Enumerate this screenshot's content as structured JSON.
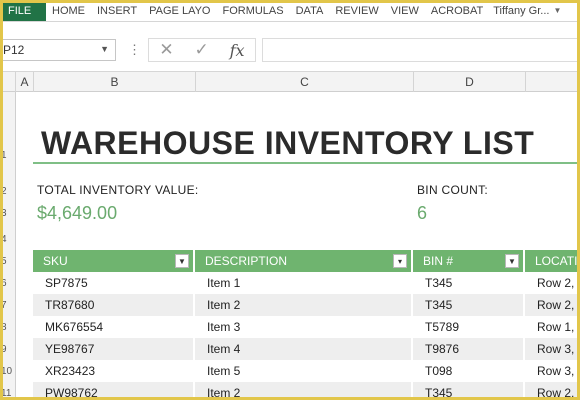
{
  "ribbon": {
    "tabs": [
      "FILE",
      "HOME",
      "INSERT",
      "PAGE LAYO",
      "FORMULAS",
      "DATA",
      "REVIEW",
      "VIEW",
      "ACROBAT"
    ],
    "user": "Tiffany Gr..."
  },
  "formula_bar": {
    "name_box": "P12",
    "cancel_icon": "close-icon",
    "enter_icon": "check-icon",
    "fx_label": "fx",
    "formula_value": ""
  },
  "columns": [
    "A",
    "B",
    "C",
    "D"
  ],
  "rows": [
    "1",
    "2",
    "3",
    "4",
    "5",
    "6",
    "7",
    "8",
    "9",
    "10",
    "11"
  ],
  "sheet": {
    "title": "WAREHOUSE INVENTORY LIST",
    "total_label": "TOTAL INVENTORY VALUE:",
    "total_value": "$4,649.00",
    "bin_label": "BIN COUNT:",
    "bin_value": "6"
  },
  "table": {
    "headers": [
      "SKU",
      "DESCRIPTION",
      "BIN #",
      "LOCATIO"
    ],
    "rows": [
      [
        "SP7875",
        "Item 1",
        "T345",
        "Row 2,"
      ],
      [
        "TR87680",
        "Item 2",
        "T345",
        "Row 2,"
      ],
      [
        "MK676554",
        "Item 3",
        "T5789",
        "Row 1,"
      ],
      [
        "YE98767",
        "Item 4",
        "T9876",
        "Row 3,"
      ],
      [
        "XR23423",
        "Item 5",
        "T098",
        "Row 3,"
      ],
      [
        "PW98762",
        "Item 2",
        "T345",
        "Row 2,"
      ]
    ]
  },
  "colors": {
    "file_tab": "#217346",
    "header_green": "#6fb46f",
    "value_green": "#6aaa6e",
    "rule_green": "#7fbf86"
  }
}
